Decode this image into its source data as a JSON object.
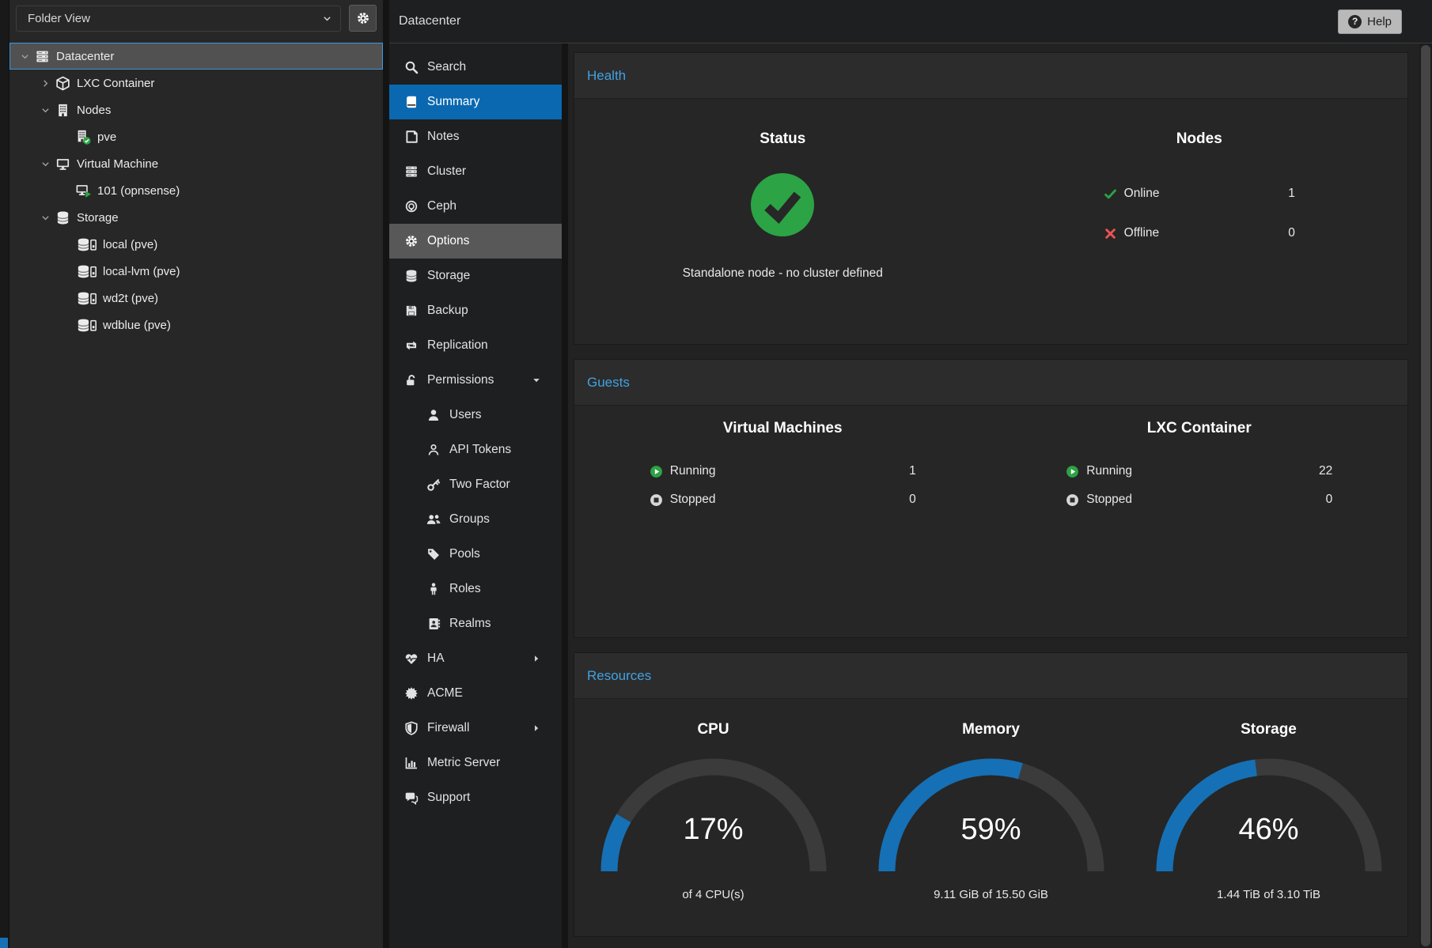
{
  "app": {
    "help_label": "Help"
  },
  "topbar": {
    "title": "Datacenter"
  },
  "sidebar": {
    "view_selector": {
      "value": "Folder View",
      "icon": "chevron-down"
    },
    "settings_button_icon": "gear",
    "tree": [
      {
        "label": "Datacenter",
        "icon": "server",
        "level": 0,
        "expander": "expanded",
        "selected": true
      },
      {
        "label": "LXC Container",
        "icon": "cube",
        "level": 1,
        "expander": "collapsed"
      },
      {
        "label": "Nodes",
        "icon": "building",
        "level": 1,
        "expander": "expanded"
      },
      {
        "label": "pve",
        "icon": "building-check",
        "level": 2,
        "expander": "none"
      },
      {
        "label": "Virtual Machine",
        "icon": "desktop",
        "level": 1,
        "expander": "expanded"
      },
      {
        "label": "101 (opnsense)",
        "icon": "desktop-play",
        "level": 2,
        "expander": "none"
      },
      {
        "label": "Storage",
        "icon": "database",
        "level": 1,
        "expander": "expanded"
      },
      {
        "label": "local (pve)",
        "icon": "database-drive",
        "level": 2,
        "expander": "none"
      },
      {
        "label": "local-lvm (pve)",
        "icon": "database-drive",
        "level": 2,
        "expander": "none"
      },
      {
        "label": "wd2t (pve)",
        "icon": "database-drive",
        "level": 2,
        "expander": "none"
      },
      {
        "label": "wdblue (pve)",
        "icon": "database-drive",
        "level": 2,
        "expander": "none"
      }
    ]
  },
  "nav": {
    "title": "Datacenter",
    "items": [
      {
        "label": "Search",
        "icon": "search"
      },
      {
        "label": "Summary",
        "icon": "book",
        "state": "selected"
      },
      {
        "label": "Notes",
        "icon": "note"
      },
      {
        "label": "Cluster",
        "icon": "cluster"
      },
      {
        "label": "Ceph",
        "icon": "ceph"
      },
      {
        "label": "Options",
        "icon": "gear",
        "state": "hovered"
      },
      {
        "label": "Storage",
        "icon": "database"
      },
      {
        "label": "Backup",
        "icon": "floppy"
      },
      {
        "label": "Replication",
        "icon": "replication"
      },
      {
        "label": "Permissions",
        "icon": "unlock",
        "arrow": "down"
      },
      {
        "label": "Users",
        "icon": "user",
        "sub": true
      },
      {
        "label": "API Tokens",
        "icon": "user-o",
        "sub": true
      },
      {
        "label": "Two Factor",
        "icon": "key",
        "sub": true
      },
      {
        "label": "Groups",
        "icon": "users",
        "sub": true
      },
      {
        "label": "Pools",
        "icon": "tag",
        "sub": true
      },
      {
        "label": "Roles",
        "icon": "person",
        "sub": true
      },
      {
        "label": "Realms",
        "icon": "address-book",
        "sub": true
      },
      {
        "label": "HA",
        "icon": "heartbeat",
        "arrow": "right"
      },
      {
        "label": "ACME",
        "icon": "certificate"
      },
      {
        "label": "Firewall",
        "icon": "shield",
        "arrow": "right"
      },
      {
        "label": "Metric Server",
        "icon": "bar-chart"
      },
      {
        "label": "Support",
        "icon": "comments"
      }
    ]
  },
  "panels": {
    "health": {
      "title": "Health",
      "status": {
        "heading": "Status",
        "status_icon": "status-ok",
        "message": "Standalone node - no cluster defined"
      },
      "nodes": {
        "heading": "Nodes",
        "rows": [
          {
            "icon": "check",
            "label": "Online",
            "value": "1"
          },
          {
            "icon": "cross",
            "label": "Offline",
            "value": "0"
          }
        ]
      }
    },
    "guests": {
      "title": "Guests",
      "groups": [
        {
          "heading": "Virtual Machines",
          "rows": [
            {
              "icon": "play-circle",
              "label": "Running",
              "value": "1"
            },
            {
              "icon": "stop-circle",
              "label": "Stopped",
              "value": "0"
            }
          ]
        },
        {
          "heading": "LXC Container",
          "rows": [
            {
              "icon": "play-circle",
              "label": "Running",
              "value": "22"
            },
            {
              "icon": "stop-circle",
              "label": "Stopped",
              "value": "0"
            }
          ]
        }
      ]
    },
    "resources": {
      "title": "Resources",
      "gauges": [
        {
          "heading": "CPU",
          "percent": 17,
          "label": "17%",
          "sublabel": "of 4 CPU(s)"
        },
        {
          "heading": "Memory",
          "percent": 59,
          "label": "59%",
          "sublabel": "9.11 GiB of 15.50 GiB"
        },
        {
          "heading": "Storage",
          "percent": 46,
          "label": "46%",
          "sublabel": "1.44 TiB of 3.10 TiB"
        }
      ]
    }
  },
  "colors": {
    "accent_blue": "#1670b5",
    "selection_blue": "#0a68b1",
    "ok_green": "#2ca345",
    "error_red": "#ee5253",
    "panel_title_blue": "#42a1e1",
    "gauge_track": "#3b3b3b"
  }
}
